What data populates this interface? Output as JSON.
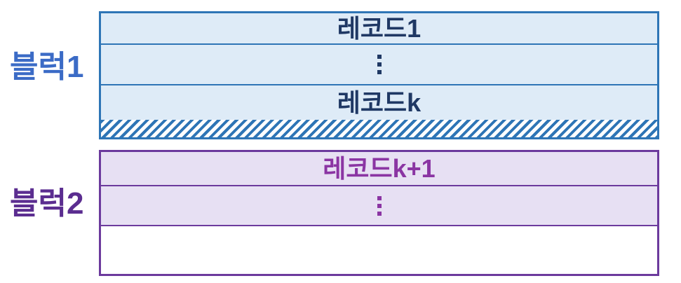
{
  "diagram": {
    "description": "Two storage blocks containing records (unspanned record organization)",
    "block1": {
      "label": "블럭1",
      "rows": {
        "record_1": "레코드1",
        "ellipsis": "⋮",
        "record_k": "레코드k"
      },
      "free_space": "diagonal-hatched remainder",
      "colors": {
        "border": "#2E75B6",
        "fill": "#DEEBF7",
        "label_text": "#3B6BC6",
        "record_text": "#1F3864"
      }
    },
    "block2": {
      "label": "블럭2",
      "rows": {
        "record_k_plus_1": "레코드k+1",
        "ellipsis": "⋮"
      },
      "free_space": "empty white remainder",
      "colors": {
        "border": "#6C3A9D",
        "fill": "#E7E0F3",
        "label_text": "#5B2D90",
        "record_text": "#8B35A3"
      }
    }
  }
}
